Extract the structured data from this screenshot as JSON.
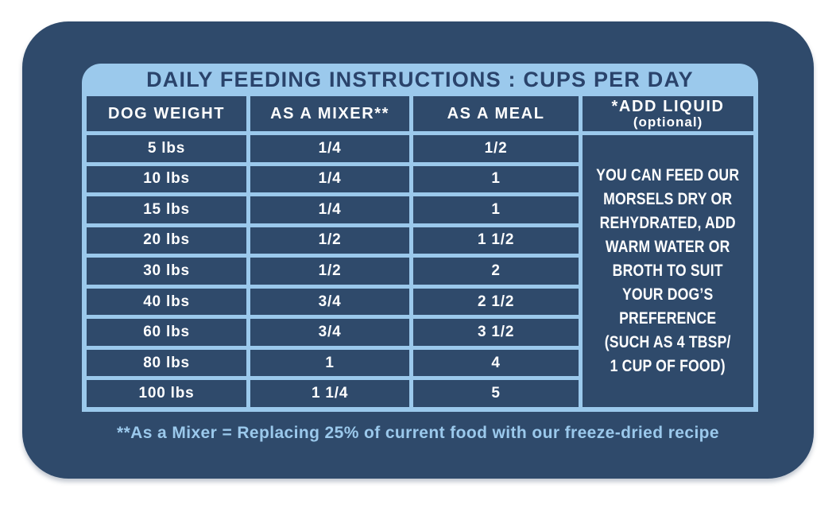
{
  "title": "DAILY FEEDING INSTRUCTIONS : CUPS PER DAY",
  "table": {
    "headers": [
      "DOG WEIGHT",
      "AS A MIXER**",
      "AS A MEAL",
      "*ADD LIQUID"
    ],
    "header_note": "(optional)",
    "rows": [
      {
        "weight": "5 lbs",
        "mixer": "1/4",
        "meal": "1/2"
      },
      {
        "weight": "10 lbs",
        "mixer": "1/4",
        "meal": "1"
      },
      {
        "weight": "15 lbs",
        "mixer": "1/4",
        "meal": "1"
      },
      {
        "weight": "20 lbs",
        "mixer": "1/2",
        "meal": "1 1/2"
      },
      {
        "weight": "30 lbs",
        "mixer": "1/2",
        "meal": "2"
      },
      {
        "weight": "40 lbs",
        "mixer": "3/4",
        "meal": "2 1/2"
      },
      {
        "weight": "60 lbs",
        "mixer": "3/4",
        "meal": "3 1/2"
      },
      {
        "weight": "80 lbs",
        "mixer": "1",
        "meal": "4"
      },
      {
        "weight": "100 lbs",
        "mixer": "1 1/4",
        "meal": "5"
      }
    ],
    "add_liquid_note": "YOU CAN FEED OUR\nMORSELS DRY OR\nREHYDRATED, ADD\nWARM WATER OR\nBROTH TO SUIT\nYOUR DOG’S\nPREFERENCE\n(SUCH AS 4 TBSP/\n1 CUP OF FOOD)"
  },
  "footnote": "**As a Mixer = Replacing 25% of current food with our freeze-dried recipe",
  "colors": {
    "card_navy": "#2F4A6B",
    "panel_light_blue": "#9BC9EC",
    "title_navy": "#2A436B",
    "cell_text_white": "#FFFFFF",
    "page_background": "#FFFFFF"
  },
  "chart_data": {
    "type": "table",
    "title": "DAILY FEEDING INSTRUCTIONS : CUPS PER DAY",
    "columns": [
      "DOG WEIGHT",
      "AS A MIXER**",
      "AS A MEAL",
      "*ADD LIQUID (optional)"
    ],
    "rows": [
      [
        "5 lbs",
        "1/4",
        "1/2"
      ],
      [
        "10 lbs",
        "1/4",
        "1"
      ],
      [
        "15 lbs",
        "1/4",
        "1"
      ],
      [
        "20 lbs",
        "1/2",
        "1 1/2"
      ],
      [
        "30 lbs",
        "1/2",
        "2"
      ],
      [
        "40 lbs",
        "3/4",
        "2 1/2"
      ],
      [
        "60 lbs",
        "3/4",
        "3 1/2"
      ],
      [
        "80 lbs",
        "1",
        "4"
      ],
      [
        "100 lbs",
        "1 1/4",
        "5"
      ]
    ],
    "add_liquid_note": "YOU CAN FEED OUR MORSELS DRY OR REHYDRATED, ADD WARM WATER OR BROTH TO SUIT YOUR DOG’S PREFERENCE (SUCH AS 4 TBSP/ 1 CUP OF FOOD)",
    "footnote": "**As a Mixer = Replacing 25% of current food with our freeze-dried recipe"
  }
}
